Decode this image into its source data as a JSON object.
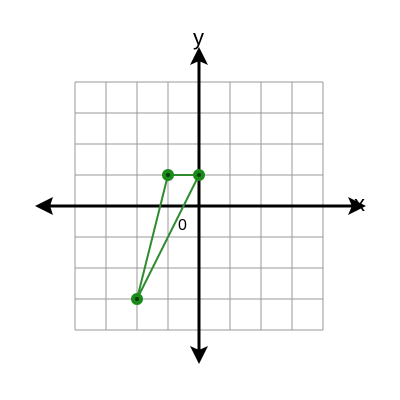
{
  "diagram": {
    "type": "coordinate-plane",
    "x_axis_label": "x",
    "y_axis_label": "y",
    "origin_label": "0",
    "grid": {
      "x_range": [
        -4,
        4
      ],
      "y_range": [
        -4,
        4
      ],
      "step": 1,
      "visible": true
    },
    "colors": {
      "grid": "#999999",
      "axis": "#000000",
      "shape": "#2e8b2e",
      "vertex_fill": "#1a8a1a",
      "vertex_dot": "#0a3d0a"
    },
    "triangle": {
      "vertices": [
        {
          "x": -1,
          "y": 1
        },
        {
          "x": 0,
          "y": 1
        },
        {
          "x": -2,
          "y": -3
        }
      ]
    }
  }
}
